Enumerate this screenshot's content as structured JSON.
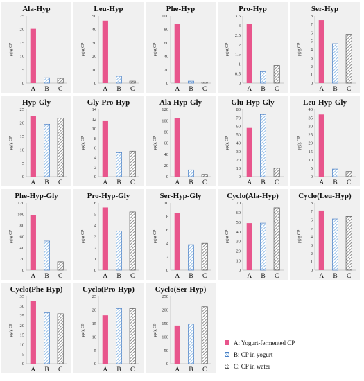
{
  "chart_data": [
    {
      "type": "bar",
      "title": "Ala-Hyp",
      "ylabel": "μg/g CP",
      "categories": [
        "A",
        "B",
        "C"
      ],
      "values": [
        20.2,
        2.0,
        1.8
      ],
      "ylim": [
        0,
        25
      ],
      "yticks": [
        0,
        5,
        10,
        15,
        20,
        25
      ]
    },
    {
      "type": "bar",
      "title": "Leu-Hyp",
      "ylabel": "μg/g CP",
      "categories": [
        "A",
        "B",
        "C"
      ],
      "values": [
        46.5,
        5.2,
        1.5
      ],
      "ylim": [
        0,
        50
      ],
      "yticks": [
        0,
        10,
        20,
        30,
        40,
        50
      ]
    },
    {
      "type": "bar",
      "title": "Phe-Hyp",
      "ylabel": "μg/g CP",
      "categories": [
        "A",
        "B",
        "C"
      ],
      "values": [
        88,
        3,
        1.5
      ],
      "ylim": [
        0,
        100
      ],
      "yticks": [
        0,
        20,
        40,
        60,
        80,
        100
      ]
    },
    {
      "type": "bar",
      "title": "Pro-Hyp",
      "ylabel": "μg/g CP",
      "categories": [
        "A",
        "B",
        "C"
      ],
      "values": [
        3.08,
        0.6,
        0.92
      ],
      "ylim": [
        0,
        3.5
      ],
      "yticks": [
        0,
        0.5,
        1,
        1.5,
        2,
        2.5,
        3,
        3.5
      ]
    },
    {
      "type": "bar",
      "title": "Ser-Hyp",
      "ylabel": "μg/g CP",
      "categories": [
        "A",
        "B",
        "C"
      ],
      "values": [
        7.5,
        4.7,
        5.8
      ],
      "ylim": [
        0,
        8
      ],
      "yticks": [
        0,
        1,
        2,
        3,
        4,
        5,
        6,
        7,
        8
      ]
    },
    {
      "type": "bar",
      "title": "Hyp-Gly",
      "ylabel": "μg/g CP",
      "categories": [
        "A",
        "B",
        "C"
      ],
      "values": [
        22.5,
        19.5,
        21.8
      ],
      "ylim": [
        0,
        25
      ],
      "yticks": [
        0,
        5,
        10,
        15,
        20,
        25
      ]
    },
    {
      "type": "bar",
      "title": "Gly-Pro-Hyp",
      "ylabel": "μg/g CP",
      "categories": [
        "A",
        "B",
        "C"
      ],
      "values": [
        11.7,
        5.0,
        5.3
      ],
      "ylim": [
        0,
        14
      ],
      "yticks": [
        0,
        2,
        4,
        6,
        8,
        10,
        12,
        14
      ]
    },
    {
      "type": "bar",
      "title": "Ala-Hyp-Gly",
      "ylabel": "μg/g CP",
      "categories": [
        "A",
        "B",
        "C"
      ],
      "values": [
        105,
        12,
        4
      ],
      "ylim": [
        0,
        120
      ],
      "yticks": [
        0,
        20,
        40,
        60,
        80,
        100,
        120
      ]
    },
    {
      "type": "bar",
      "title": "Glu-Hyp-Gly",
      "ylabel": "μg/g CP",
      "categories": [
        "A",
        "B",
        "C"
      ],
      "values": [
        58,
        74,
        10
      ],
      "ylim": [
        0,
        80
      ],
      "yticks": [
        0,
        10,
        20,
        30,
        40,
        50,
        60,
        70,
        80
      ]
    },
    {
      "type": "bar",
      "title": "Leu-Hyp-Gly",
      "ylabel": "μg/g CP",
      "categories": [
        "A",
        "B",
        "C"
      ],
      "values": [
        37,
        4.5,
        3
      ],
      "ylim": [
        0,
        40
      ],
      "yticks": [
        0,
        5,
        10,
        15,
        20,
        25,
        30,
        35,
        40
      ]
    },
    {
      "type": "bar",
      "title": "Phe-Hyp-Gly",
      "ylabel": "μg/g CP",
      "categories": [
        "A",
        "B",
        "C"
      ],
      "values": [
        98,
        52,
        15
      ],
      "ylim": [
        0,
        120
      ],
      "yticks": [
        0,
        20,
        40,
        60,
        80,
        100,
        120
      ]
    },
    {
      "type": "bar",
      "title": "Pro-Hyp-Gly",
      "ylabel": "μg/g CP",
      "categories": [
        "A",
        "B",
        "C"
      ],
      "values": [
        5.6,
        3.5,
        5.2
      ],
      "ylim": [
        0,
        6
      ],
      "yticks": [
        0,
        1,
        2,
        3,
        4,
        5,
        6
      ]
    },
    {
      "type": "bar",
      "title": "Ser-Hyp-Gly",
      "ylabel": "μg/g CP",
      "categories": [
        "A",
        "B",
        "C"
      ],
      "values": [
        8.5,
        3.8,
        4.0
      ],
      "ylim": [
        0,
        10
      ],
      "yticks": [
        0,
        2,
        4,
        6,
        8,
        10
      ]
    },
    {
      "type": "bar",
      "title": "Cyclo(Ala-Hyp)",
      "ylabel": "μg/g CP",
      "categories": [
        "A",
        "B",
        "C"
      ],
      "values": [
        49,
        49,
        65
      ],
      "ylim": [
        0,
        70
      ],
      "yticks": [
        0,
        10,
        20,
        30,
        40,
        50,
        60,
        70
      ]
    },
    {
      "type": "bar",
      "title": "Cyclo(Leu-Hyp)",
      "ylabel": "μg/g CP",
      "categories": [
        "A",
        "B",
        "C"
      ],
      "values": [
        7.1,
        6.1,
        6.4
      ],
      "ylim": [
        0,
        8
      ],
      "yticks": [
        0,
        1,
        2,
        3,
        4,
        5,
        6,
        7,
        8
      ]
    },
    {
      "type": "bar",
      "title": "Cyclo(Phe-Hyp)",
      "ylabel": "μg/g CP",
      "categories": [
        "A",
        "B",
        "C"
      ],
      "values": [
        32.5,
        26.5,
        26
      ],
      "ylim": [
        0,
        35
      ],
      "yticks": [
        0,
        5,
        10,
        15,
        20,
        25,
        30,
        35
      ]
    },
    {
      "type": "bar",
      "title": "Cyclo(Pro-Hyp)",
      "ylabel": "μg/g CP",
      "categories": [
        "A",
        "B",
        "C"
      ],
      "values": [
        18,
        20.5,
        20.5
      ],
      "ylim": [
        0,
        25
      ],
      "yticks": [
        0,
        5,
        10,
        15,
        20,
        25
      ]
    },
    {
      "type": "bar",
      "title": "Cyclo(Ser-Hyp)",
      "ylabel": "μg/g CP",
      "categories": [
        "A",
        "B",
        "C"
      ],
      "values": [
        142,
        148,
        212
      ],
      "ylim": [
        0,
        250
      ],
      "yticks": [
        0,
        50,
        100,
        150,
        200,
        250
      ]
    }
  ],
  "legend": {
    "position": "bottom-right",
    "items": [
      {
        "key": "A",
        "label": "A: Yogurt-fermented CP",
        "color": "#e8558c"
      },
      {
        "key": "B",
        "label": "B: CP in yogurt",
        "color": "#7aaee0"
      },
      {
        "key": "C",
        "label": "C: CP in water",
        "color": "#777777"
      }
    ]
  },
  "colors": {
    "A": "#e8558c",
    "B": "#7aaee0",
    "C": "#777777",
    "panel_bg": "#f0f0f0"
  }
}
